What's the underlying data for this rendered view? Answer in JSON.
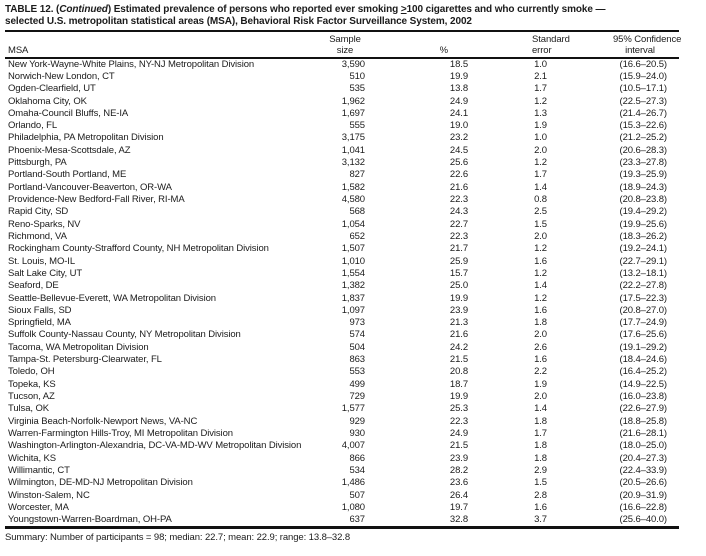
{
  "title": {
    "line1_pre": "TABLE 12. (",
    "line1_italic": "Continued",
    "line1_mid": ") Estimated prevalence of persons who reported ever smoking ",
    "geq_symbol": ">",
    "line1_post": "100 cigarettes and who currently smoke —",
    "line2": "selected U.S. metropolitan statistical areas (MSA), Behavioral Risk Factor Surveillance System, 2002"
  },
  "columns": {
    "msa": "MSA",
    "sample_line1": "Sample",
    "sample_line2": "size",
    "percent": "%",
    "stderr_line1": "Standard",
    "stderr_line2": "error",
    "ci_line1": "95% Confidence",
    "ci_line2": "interval"
  },
  "rows": [
    {
      "msa": "New York-Wayne-White Plains, NY-NJ Metropolitan Division",
      "sample": "3,590",
      "pct": "18.5",
      "se": "1.0",
      "ci": "(16.6–20.5)"
    },
    {
      "msa": "Norwich-New London, CT",
      "sample": "510",
      "pct": "19.9",
      "se": "2.1",
      "ci": "(15.9–24.0)"
    },
    {
      "msa": "Ogden-Clearfield, UT",
      "sample": "535",
      "pct": "13.8",
      "se": "1.7",
      "ci": "(10.5–17.1)"
    },
    {
      "msa": "Oklahoma City, OK",
      "sample": "1,962",
      "pct": "24.9",
      "se": "1.2",
      "ci": "(22.5–27.3)"
    },
    {
      "msa": "Omaha-Council Bluffs, NE-IA",
      "sample": "1,697",
      "pct": "24.1",
      "se": "1.3",
      "ci": "(21.4–26.7)"
    },
    {
      "msa": "Orlando, FL",
      "sample": "555",
      "pct": "19.0",
      "se": "1.9",
      "ci": "(15.3–22.6)"
    },
    {
      "msa": "Philadelphia, PA Metropolitan Division",
      "sample": "3,175",
      "pct": "23.2",
      "se": "1.0",
      "ci": "(21.2–25.2)"
    },
    {
      "msa": "Phoenix-Mesa-Scottsdale, AZ",
      "sample": "1,041",
      "pct": "24.5",
      "se": "2.0",
      "ci": "(20.6–28.3)"
    },
    {
      "msa": "Pittsburgh, PA",
      "sample": "3,132",
      "pct": "25.6",
      "se": "1.2",
      "ci": "(23.3–27.8)"
    },
    {
      "msa": "Portland-South Portland, ME",
      "sample": "827",
      "pct": "22.6",
      "se": "1.7",
      "ci": "(19.3–25.9)"
    },
    {
      "msa": "Portland-Vancouver-Beaverton, OR-WA",
      "sample": "1,582",
      "pct": "21.6",
      "se": "1.4",
      "ci": "(18.9–24.3)"
    },
    {
      "msa": "Providence-New Bedford-Fall River, RI-MA",
      "sample": "4,580",
      "pct": "22.3",
      "se": "0.8",
      "ci": "(20.8–23.8)"
    },
    {
      "msa": "Rapid City, SD",
      "sample": "568",
      "pct": "24.3",
      "se": "2.5",
      "ci": "(19.4–29.2)"
    },
    {
      "msa": "Reno-Sparks, NV",
      "sample": "1,054",
      "pct": "22.7",
      "se": "1.5",
      "ci": "(19.9–25.6)"
    },
    {
      "msa": "Richmond, VA",
      "sample": "652",
      "pct": "22.3",
      "se": "2.0",
      "ci": "(18.3–26.2)"
    },
    {
      "msa": "Rockingham County-Strafford County, NH Metropolitan Division",
      "sample": "1,507",
      "pct": "21.7",
      "se": "1.2",
      "ci": "(19.2–24.1)"
    },
    {
      "msa": "St. Louis, MO-IL",
      "sample": "1,010",
      "pct": "25.9",
      "se": "1.6",
      "ci": "(22.7–29.1)"
    },
    {
      "msa": "Salt Lake City, UT",
      "sample": "1,554",
      "pct": "15.7",
      "se": "1.2",
      "ci": "(13.2–18.1)"
    },
    {
      "msa": "Seaford, DE",
      "sample": "1,382",
      "pct": "25.0",
      "se": "1.4",
      "ci": "(22.2–27.8)"
    },
    {
      "msa": "Seattle-Bellevue-Everett, WA Metropolitan Division",
      "sample": "1,837",
      "pct": "19.9",
      "se": "1.2",
      "ci": "(17.5–22.3)"
    },
    {
      "msa": "Sioux Falls, SD",
      "sample": "1,097",
      "pct": "23.9",
      "se": "1.6",
      "ci": "(20.8–27.0)"
    },
    {
      "msa": "Springfield, MA",
      "sample": "973",
      "pct": "21.3",
      "se": "1.8",
      "ci": "(17.7–24.9)"
    },
    {
      "msa": "Suffolk County-Nassau County, NY Metropolitan Division",
      "sample": "574",
      "pct": "21.6",
      "se": "2.0",
      "ci": "(17.6–25.6)"
    },
    {
      "msa": "Tacoma, WA Metropolitan Division",
      "sample": "504",
      "pct": "24.2",
      "se": "2.6",
      "ci": "(19.1–29.2)"
    },
    {
      "msa": "Tampa-St. Petersburg-Clearwater, FL",
      "sample": "863",
      "pct": "21.5",
      "se": "1.6",
      "ci": "(18.4–24.6)"
    },
    {
      "msa": "Toledo, OH",
      "sample": "553",
      "pct": "20.8",
      "se": "2.2",
      "ci": "(16.4–25.2)"
    },
    {
      "msa": "Topeka, KS",
      "sample": "499",
      "pct": "18.7",
      "se": "1.9",
      "ci": "(14.9–22.5)"
    },
    {
      "msa": "Tucson, AZ",
      "sample": "729",
      "pct": "19.9",
      "se": "2.0",
      "ci": "(16.0–23.8)"
    },
    {
      "msa": "Tulsa, OK",
      "sample": "1,577",
      "pct": "25.3",
      "se": "1.4",
      "ci": "(22.6–27.9)"
    },
    {
      "msa": "Virginia Beach-Norfolk-Newport News, VA-NC",
      "sample": "929",
      "pct": "22.3",
      "se": "1.8",
      "ci": "(18.8–25.8)"
    },
    {
      "msa": "Warren-Farmington Hills-Troy, MI Metropolitan Division",
      "sample": "930",
      "pct": "24.9",
      "se": "1.7",
      "ci": "(21.6–28.1)"
    },
    {
      "msa": "Washington-Arlington-Alexandria, DC-VA-MD-WV Metropolitan Division",
      "sample": "4,007",
      "pct": "21.5",
      "se": "1.8",
      "ci": "(18.0–25.0)"
    },
    {
      "msa": "Wichita, KS",
      "sample": "866",
      "pct": "23.9",
      "se": "1.8",
      "ci": "(20.4–27.3)"
    },
    {
      "msa": "Willimantic, CT",
      "sample": "534",
      "pct": "28.2",
      "se": "2.9",
      "ci": "(22.4–33.9)"
    },
    {
      "msa": "Wilmington, DE-MD-NJ Metropolitan Division",
      "sample": "1,486",
      "pct": "23.6",
      "se": "1.5",
      "ci": "(20.5–26.6)"
    },
    {
      "msa": "Winston-Salem, NC",
      "sample": "507",
      "pct": "26.4",
      "se": "2.8",
      "ci": "(20.9–31.9)"
    },
    {
      "msa": "Worcester, MA",
      "sample": "1,080",
      "pct": "19.7",
      "se": "1.6",
      "ci": "(16.6–22.8)"
    },
    {
      "msa": "Youngstown-Warren-Boardman, OH-PA",
      "sample": "637",
      "pct": "32.8",
      "se": "3.7",
      "ci": "(25.6–40.0)"
    }
  ],
  "summary": "Summary: Number of participants = 98; median: 22.7; mean: 22.9; range: 13.8–32.8"
}
